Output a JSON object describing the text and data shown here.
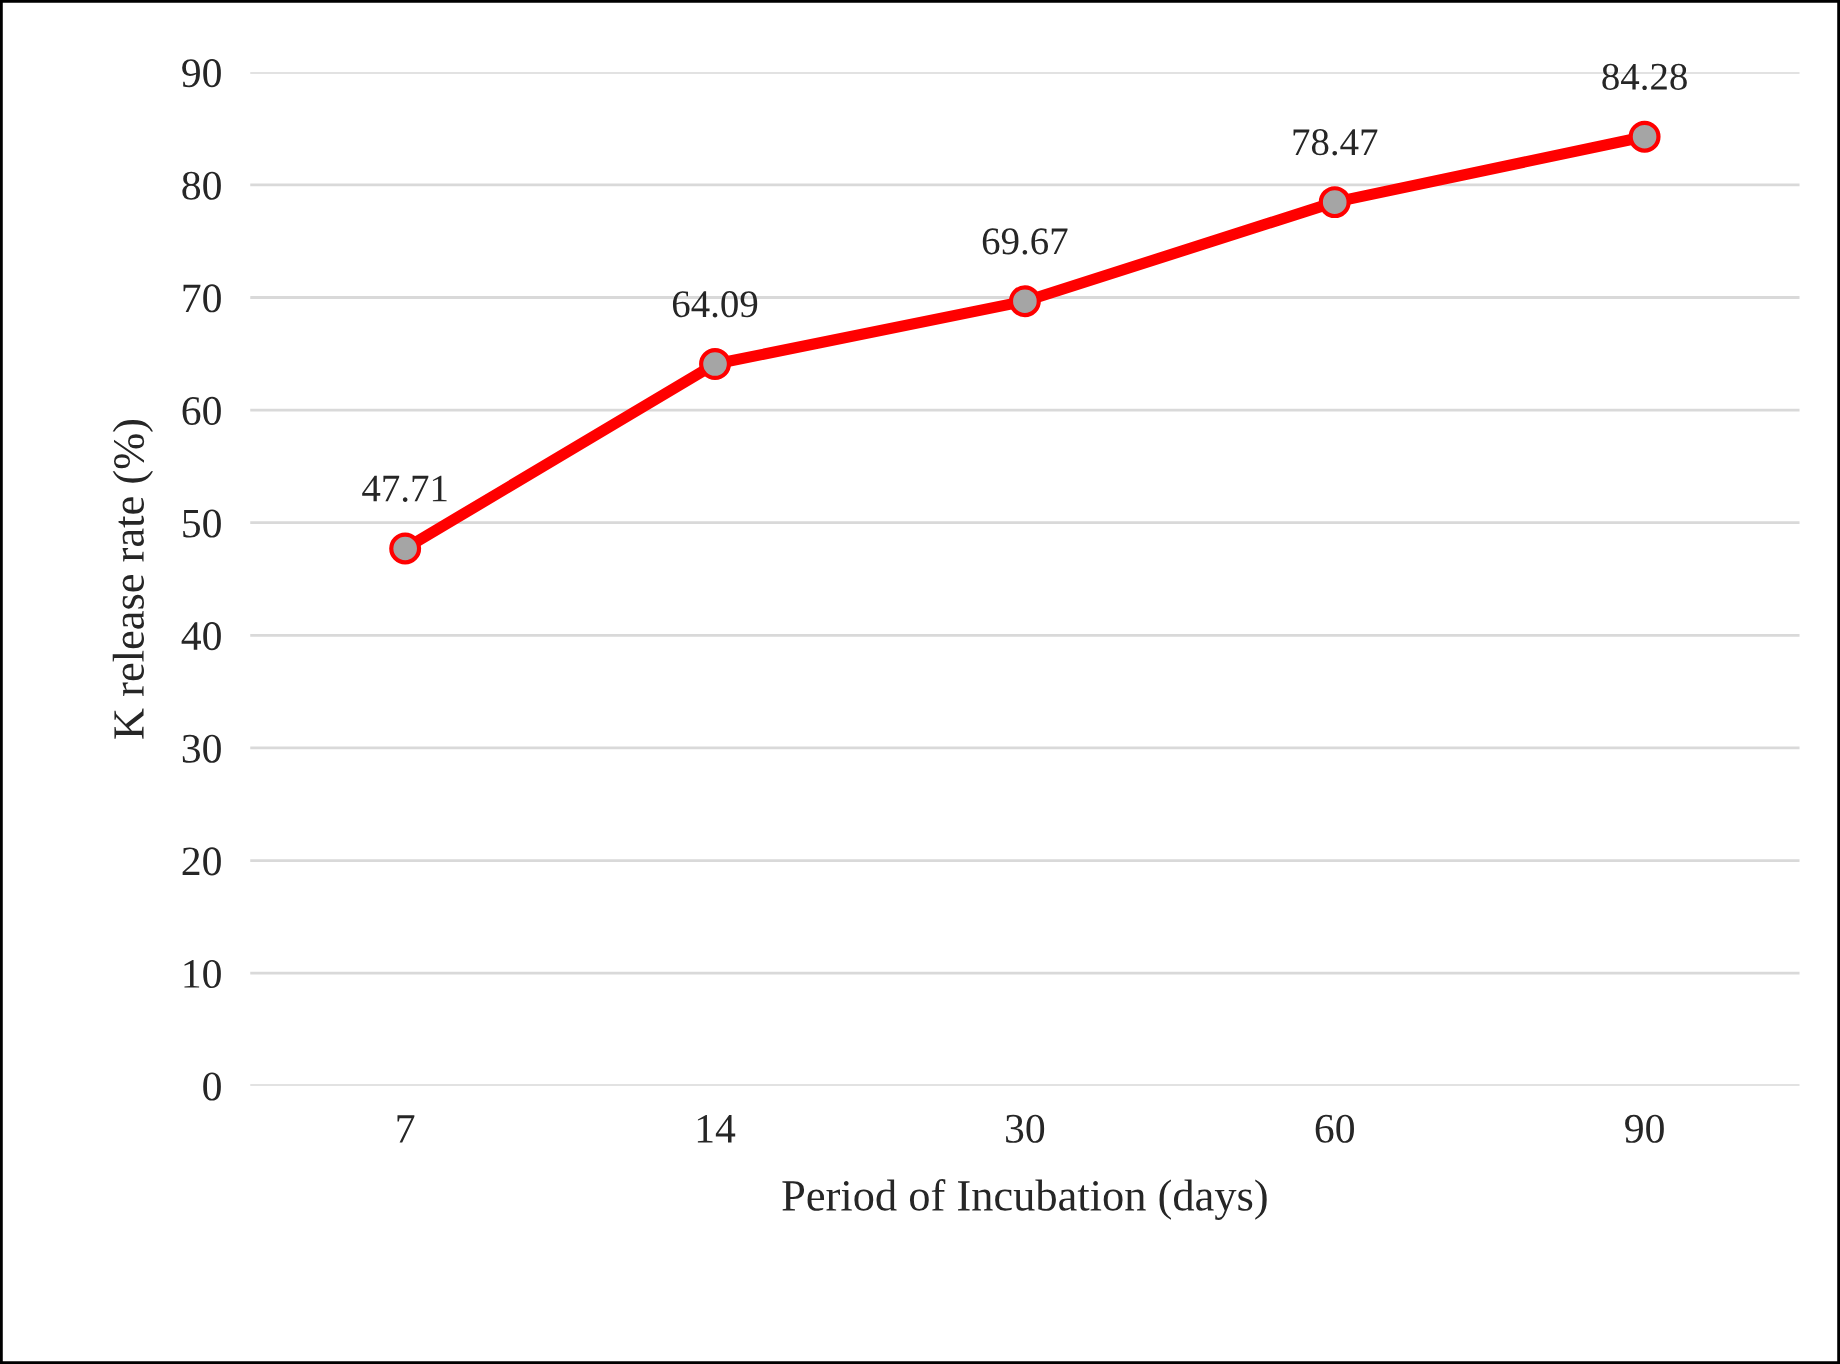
{
  "chart_data": {
    "type": "line",
    "xlabel": "Period of Incubation (days)",
    "ylabel": "K release rate (%)",
    "categories": [
      "7",
      "14",
      "30",
      "60",
      "90"
    ],
    "series": [
      {
        "color": "#ff0000",
        "values": [
          47.71,
          64.09,
          69.67,
          78.47,
          84.28
        ]
      }
    ],
    "ylim": [
      0,
      90
    ],
    "yticks": [
      0,
      10,
      20,
      30,
      40,
      50,
      60,
      70,
      80,
      90
    ],
    "grid": "y",
    "marker": "circle",
    "line_style": "solid",
    "data_labels": true
  }
}
